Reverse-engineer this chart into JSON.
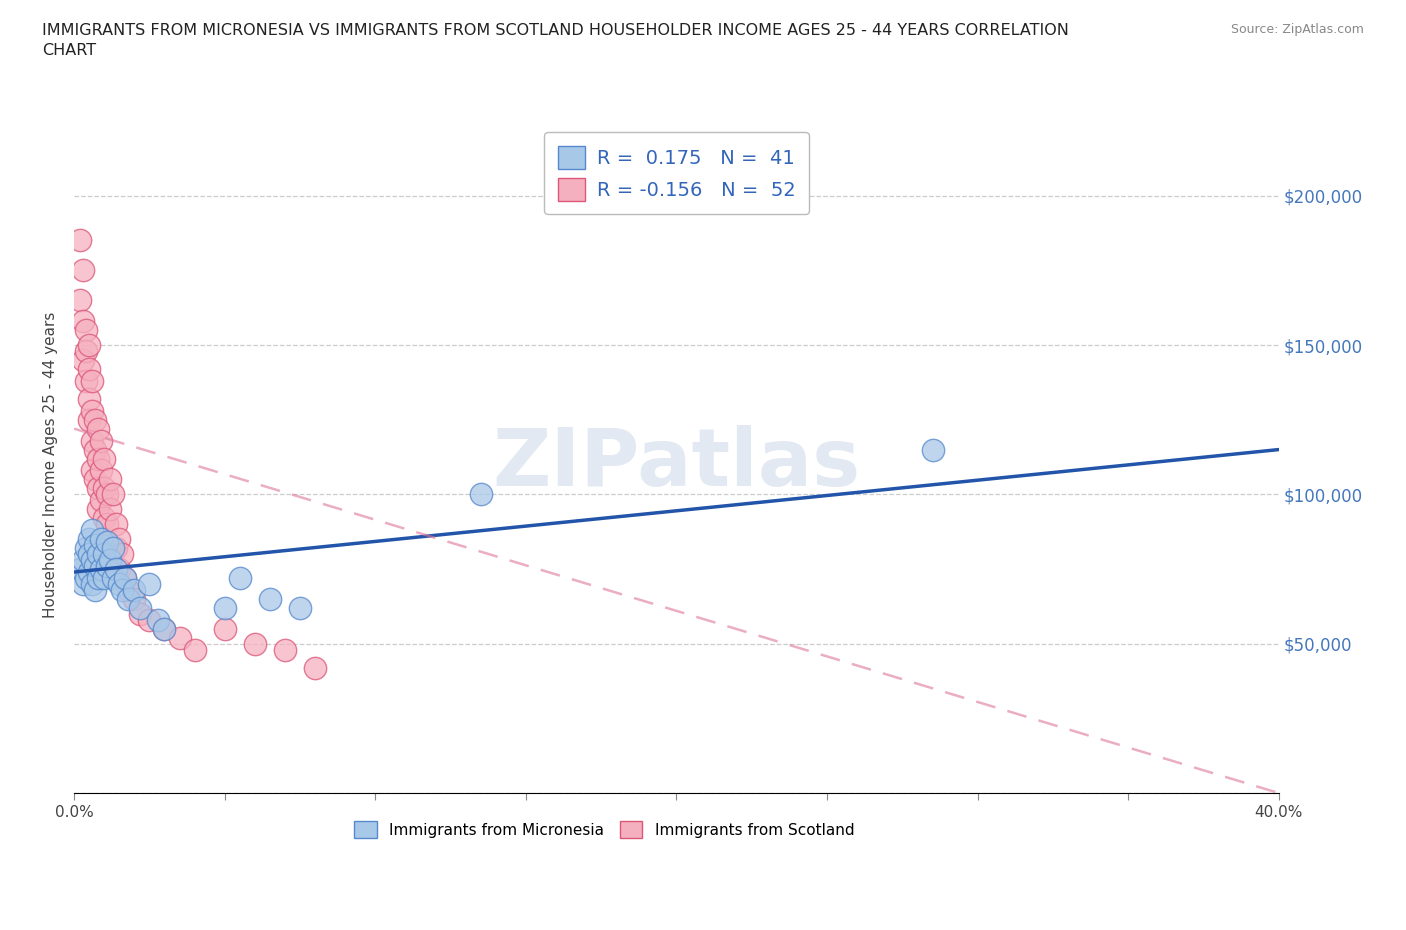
{
  "title": "IMMIGRANTS FROM MICRONESIA VS IMMIGRANTS FROM SCOTLAND HOUSEHOLDER INCOME AGES 25 - 44 YEARS CORRELATION\nCHART",
  "source": "Source: ZipAtlas.com",
  "ylabel": "Householder Income Ages 25 - 44 years",
  "xlim": [
    0.0,
    0.4
  ],
  "ylim": [
    0,
    220000
  ],
  "xticks": [
    0.0,
    0.05,
    0.1,
    0.15,
    0.2,
    0.25,
    0.3,
    0.35,
    0.4
  ],
  "yticks": [
    0,
    50000,
    100000,
    150000,
    200000
  ],
  "yticklabels": [
    "",
    "$50,000",
    "$100,000",
    "$150,000",
    "$200,000"
  ],
  "micronesia_color": "#a8c8e8",
  "scotland_color": "#f5b0c0",
  "micronesia_edge": "#5588cc",
  "scotland_edge": "#dd5577",
  "trend_micronesia_color": "#2255aa",
  "trend_scotland_color": "#dd7799",
  "R_micronesia": 0.175,
  "N_micronesia": 41,
  "R_scotland": -0.156,
  "N_scotland": 52,
  "legend_label_micronesia": "Immigrants from Micronesia",
  "legend_label_scotland": "Immigrants from Scotland",
  "watermark": "ZIPatlas",
  "micronesia_x": [
    0.002,
    0.003,
    0.003,
    0.004,
    0.004,
    0.005,
    0.005,
    0.005,
    0.006,
    0.006,
    0.006,
    0.007,
    0.007,
    0.007,
    0.008,
    0.008,
    0.009,
    0.009,
    0.01,
    0.01,
    0.011,
    0.011,
    0.012,
    0.013,
    0.013,
    0.014,
    0.015,
    0.016,
    0.017,
    0.018,
    0.02,
    0.022,
    0.025,
    0.028,
    0.03,
    0.05,
    0.055,
    0.065,
    0.075,
    0.135,
    0.285
  ],
  "micronesia_y": [
    75000,
    78000,
    70000,
    82000,
    72000,
    85000,
    80000,
    74000,
    88000,
    78000,
    70000,
    83000,
    76000,
    68000,
    80000,
    72000,
    85000,
    75000,
    80000,
    72000,
    84000,
    76000,
    78000,
    82000,
    72000,
    75000,
    70000,
    68000,
    72000,
    65000,
    68000,
    62000,
    70000,
    58000,
    55000,
    62000,
    72000,
    65000,
    62000,
    100000,
    115000
  ],
  "scotland_x": [
    0.002,
    0.002,
    0.003,
    0.003,
    0.003,
    0.004,
    0.004,
    0.004,
    0.005,
    0.005,
    0.005,
    0.005,
    0.006,
    0.006,
    0.006,
    0.006,
    0.007,
    0.007,
    0.007,
    0.008,
    0.008,
    0.008,
    0.008,
    0.009,
    0.009,
    0.009,
    0.01,
    0.01,
    0.01,
    0.01,
    0.011,
    0.011,
    0.012,
    0.012,
    0.013,
    0.014,
    0.014,
    0.015,
    0.015,
    0.016,
    0.017,
    0.018,
    0.02,
    0.022,
    0.025,
    0.03,
    0.035,
    0.04,
    0.05,
    0.06,
    0.07,
    0.08
  ],
  "scotland_y": [
    185000,
    165000,
    175000,
    158000,
    145000,
    155000,
    148000,
    138000,
    150000,
    142000,
    132000,
    125000,
    138000,
    128000,
    118000,
    108000,
    125000,
    115000,
    105000,
    122000,
    112000,
    102000,
    95000,
    118000,
    108000,
    98000,
    112000,
    102000,
    92000,
    85000,
    100000,
    90000,
    105000,
    95000,
    100000,
    90000,
    82000,
    85000,
    75000,
    80000,
    72000,
    68000,
    65000,
    60000,
    58000,
    55000,
    52000,
    48000,
    55000,
    50000,
    48000,
    42000
  ],
  "trend_mic_x0": 0.0,
  "trend_mic_x1": 0.4,
  "trend_mic_y0": 74000,
  "trend_mic_y1": 115000,
  "trend_sco_x0": 0.0,
  "trend_sco_x1": 0.4,
  "trend_sco_y0": 122000,
  "trend_sco_y1": 0
}
